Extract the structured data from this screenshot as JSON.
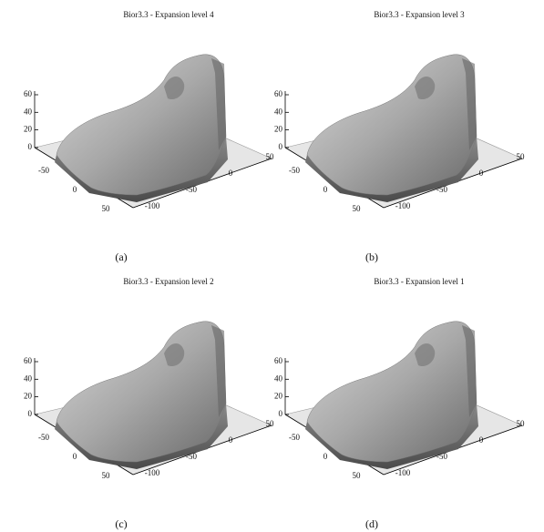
{
  "panels": [
    {
      "title": "Bior3.3 - Expansion level 4",
      "label": "(a)",
      "z_ticks": [
        60,
        40,
        20,
        0
      ],
      "x_ticks": [
        -50,
        0,
        50
      ],
      "y_ticks": [
        50,
        0,
        -50,
        -100
      ]
    },
    {
      "title": "Bior3.3 - Expansion level 3",
      "label": "(b)",
      "z_ticks": [
        60,
        40,
        20,
        0
      ],
      "x_ticks": [
        -50,
        0,
        50
      ],
      "y_ticks": [
        50,
        0,
        -50,
        -100
      ]
    },
    {
      "title": "Bior3.3 - Expansion level 2",
      "label": "(c)",
      "z_ticks": [
        60,
        40,
        20,
        0
      ],
      "x_ticks": [
        -50,
        0,
        50
      ],
      "y_ticks": [
        50,
        0,
        -50,
        -100
      ]
    },
    {
      "title": "Bior3.3 - Expansion level 1",
      "label": "(d)",
      "z_ticks": [
        60,
        40,
        20,
        0
      ],
      "x_ticks": [
        -50,
        0,
        50
      ],
      "y_ticks": [
        50,
        0,
        -50,
        -100
      ]
    }
  ]
}
